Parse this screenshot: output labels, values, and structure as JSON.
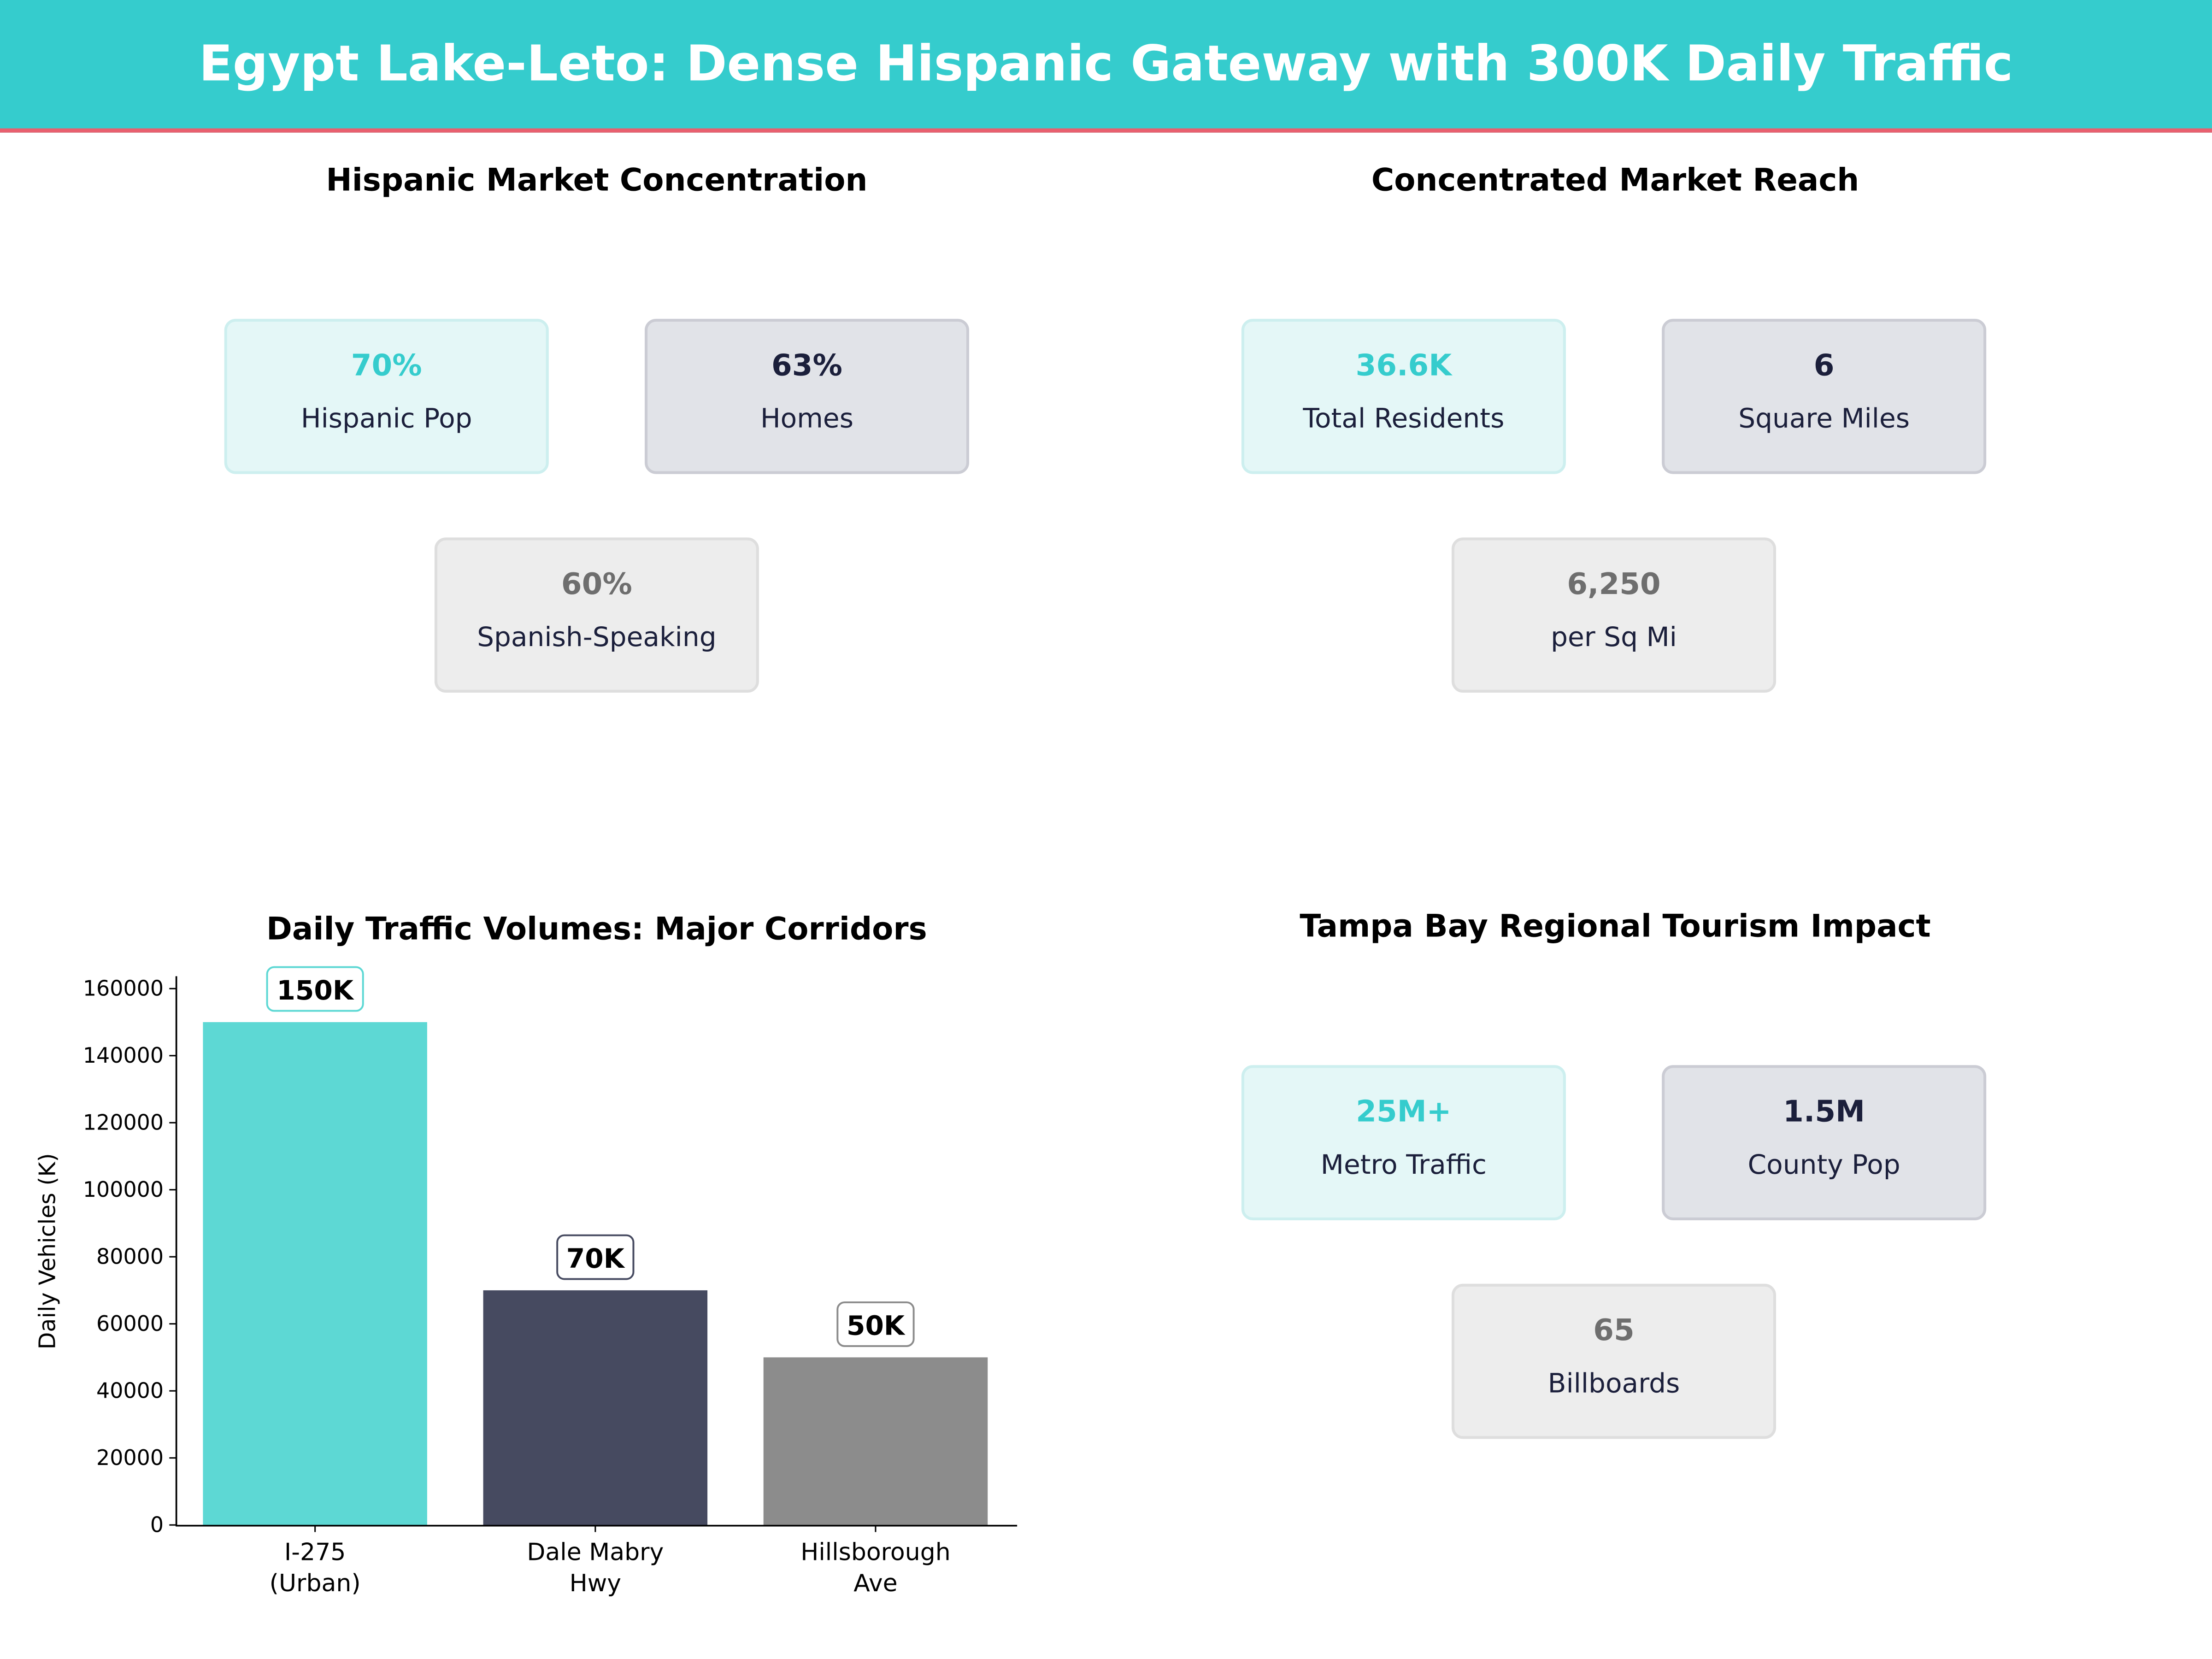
{
  "title": "Egypt Lake-Leto: Dense Hispanic Gateway with 300K Daily Traffic",
  "panels": [
    {
      "title": "Hispanic Market Concentration",
      "cards": [
        {
          "value": "70%",
          "label": "Hispanic Pop"
        },
        {
          "value": "63%",
          "label": "Homes"
        },
        {
          "value": "60%",
          "label": "Spanish-Speaking"
        }
      ]
    },
    {
      "title": "Concentrated Market Reach",
      "cards": [
        {
          "value": "36.6K",
          "label": "Total Residents"
        },
        {
          "value": "6",
          "label": "Square Miles"
        },
        {
          "value": "6,250",
          "label": "per Sq Mi"
        }
      ]
    },
    {
      "title": "Tampa Bay Regional Tourism Impact",
      "cards": [
        {
          "value": "25M+",
          "label": "Metro Traffic"
        },
        {
          "value": "1.5M",
          "label": "County Pop"
        },
        {
          "value": "65",
          "label": "Billboards"
        }
      ]
    }
  ],
  "colors": {
    "header": "#35CCCD",
    "accent_line": "#E8606F",
    "teal": "#5DD8D4",
    "navy": "#464A60",
    "gray": "#8C8C8C"
  },
  "chart_data": {
    "type": "bar",
    "title": "Daily Traffic Volumes: Major Corridors",
    "xlabel": "",
    "ylabel": "Daily Vehicles (K)",
    "categories": [
      "I-275\n(Urban)",
      "Dale Mabry\nHwy",
      "Hillsborough\nAve"
    ],
    "values": [
      150000,
      70000,
      50000
    ],
    "data_labels": [
      "150K",
      "70K",
      "50K"
    ],
    "bar_colors": [
      "#5DD8D4",
      "#464A60",
      "#8C8C8C"
    ],
    "label_edge_colors": [
      "#5DD8D4",
      "#464A60",
      "#8C8C8C"
    ],
    "yticks": [
      0,
      20000,
      40000,
      60000,
      80000,
      100000,
      120000,
      140000,
      160000
    ],
    "ylim": [
      0,
      163700
    ],
    "grid": false
  }
}
